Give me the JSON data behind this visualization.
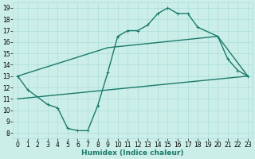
{
  "xlabel": "Humidex (Indice chaleur)",
  "bg_color": "#cceee8",
  "grid_color": "#aadddd",
  "line_color": "#1a7a6a",
  "xlim": [
    -0.5,
    23.5
  ],
  "ylim": [
    7.5,
    19.5
  ],
  "yticks": [
    8,
    9,
    10,
    11,
    12,
    13,
    14,
    15,
    16,
    17,
    18,
    19
  ],
  "xticks": [
    0,
    1,
    2,
    3,
    4,
    5,
    6,
    7,
    8,
    9,
    10,
    11,
    12,
    13,
    14,
    15,
    16,
    17,
    18,
    19,
    20,
    21,
    22,
    23
  ],
  "line1_x": [
    0,
    1,
    3,
    4,
    5,
    6,
    7,
    8,
    9,
    10,
    11,
    12,
    13,
    14,
    15,
    16,
    17,
    18,
    20,
    21,
    22,
    23
  ],
  "line1_y": [
    13.0,
    11.8,
    10.5,
    10.2,
    8.4,
    8.2,
    8.2,
    10.4,
    13.3,
    16.5,
    17.0,
    17.0,
    17.5,
    18.5,
    19.0,
    18.5,
    18.5,
    17.3,
    16.5,
    14.5,
    13.5,
    13.0
  ],
  "line2_x": [
    0,
    9,
    20,
    23
  ],
  "line2_y": [
    13.0,
    15.5,
    16.5,
    13.0
  ],
  "line3_x": [
    0,
    23
  ],
  "line3_y": [
    11.0,
    13.0
  ],
  "linewidth": 1.0,
  "markersize": 3,
  "tick_fontsize": 5.5,
  "xlabel_fontsize": 6.5
}
